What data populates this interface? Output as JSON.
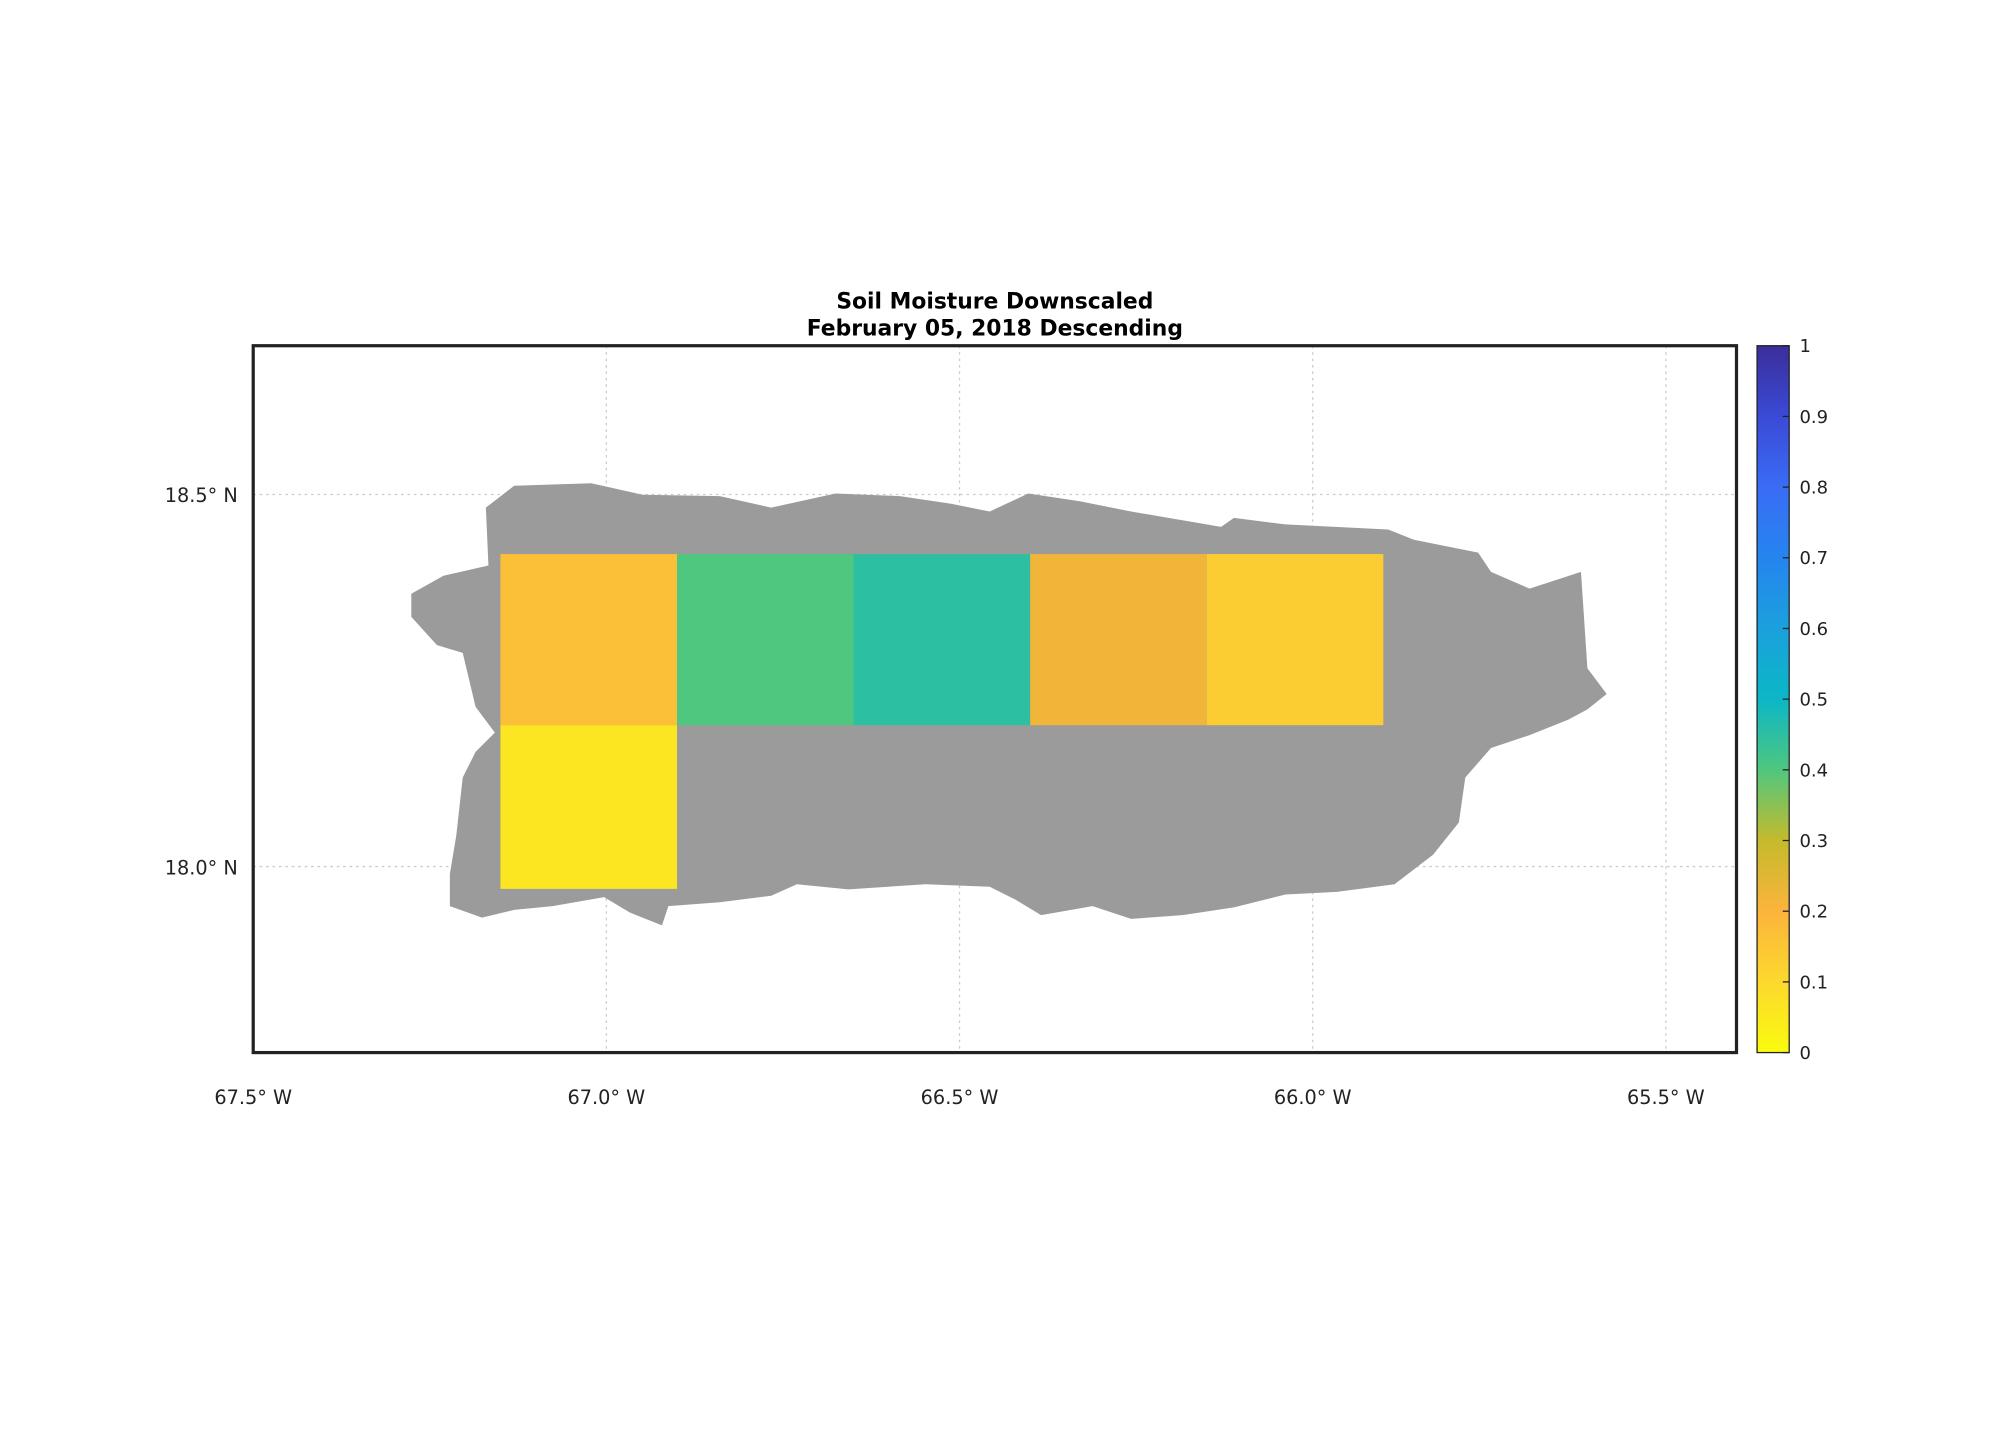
{
  "chart_data": {
    "type": "map",
    "title": "Soil Moisture Downscaled",
    "subtitle": "February 05, 2018 Descending",
    "xlim": [
      -67.5,
      -65.4
    ],
    "ylim": [
      17.75,
      18.7
    ],
    "xticks": [
      {
        "value": -67.5,
        "label": "67.5° W"
      },
      {
        "value": -67.0,
        "label": "67.0° W"
      },
      {
        "value": -66.5,
        "label": "66.5° W"
      },
      {
        "value": -66.0,
        "label": "66.0° W"
      },
      {
        "value": -65.5,
        "label": "65.5° W"
      }
    ],
    "yticks": [
      {
        "value": 18.0,
        "label": "18.0° N"
      },
      {
        "value": 18.5,
        "label": "18.5° N"
      }
    ],
    "grid": true,
    "clim": [
      0,
      1
    ],
    "cticks": [
      0,
      0.1,
      0.2,
      0.3,
      0.4,
      0.5,
      0.6,
      0.7,
      0.8,
      0.9,
      1
    ],
    "colormap": [
      "#f9fb0e",
      "#fdd82e",
      "#fbb43c",
      "#c5ba2c",
      "#4fc77e",
      "#0bb7c6",
      "#1ba0dc",
      "#2585ef",
      "#3a6cf5",
      "#3a4ad6",
      "#3b2e9a"
    ],
    "land_color": "#9b9b9b",
    "tiles": [
      {
        "lon": [
          -67.15,
          -66.9
        ],
        "lat": [
          18.19,
          18.42
        ],
        "value": 0.17
      },
      {
        "lon": [
          -66.9,
          -66.65
        ],
        "lat": [
          18.19,
          18.42
        ],
        "value": 0.4
      },
      {
        "lon": [
          -66.65,
          -66.4
        ],
        "lat": [
          18.19,
          18.42
        ],
        "value": 0.45
      },
      {
        "lon": [
          -66.4,
          -66.15
        ],
        "lat": [
          18.19,
          18.42
        ],
        "value": 0.22
      },
      {
        "lon": [
          -66.15,
          -65.9
        ],
        "lat": [
          18.19,
          18.42
        ],
        "value": 0.13
      },
      {
        "lon": [
          -67.15,
          -66.9
        ],
        "lat": [
          17.97,
          18.19
        ],
        "value": 0.06
      }
    ]
  }
}
